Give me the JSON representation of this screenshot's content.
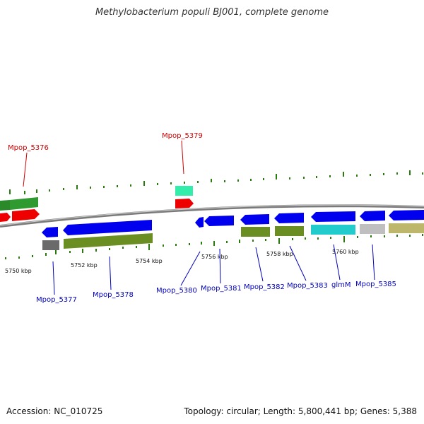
{
  "title": "Methylobacterium populi BJ001, complete genome",
  "accession": "Accession: NC_010725",
  "summary": "Topology: circular; Length: 5,800,441 bp; Genes: 5,388",
  "colors": {
    "forward_label": "#cc0000",
    "reverse_label": "#0000bb",
    "backbone": "#8a8a8a",
    "gc_ticks": "#2a7a10"
  },
  "scale_ticks": [
    "5750 kbp",
    "5752 kbp",
    "5754 kbp",
    "5756 kbp",
    "5758 kbp",
    "5760 kbp"
  ],
  "gene_labels": {
    "mpop_5376": "Mpop_5376",
    "mpop_5379": "Mpop_5379",
    "mpop_5377": "Mpop_5377",
    "mpop_5378": "Mpop_5378",
    "mpop_5380": "Mpop_5380",
    "mpop_5381": "Mpop_5381",
    "mpop_5382": "Mpop_5382",
    "mpop_5383": "Mpop_5383",
    "glmm": "glmM",
    "mpop_5385": "Mpop_5385"
  }
}
